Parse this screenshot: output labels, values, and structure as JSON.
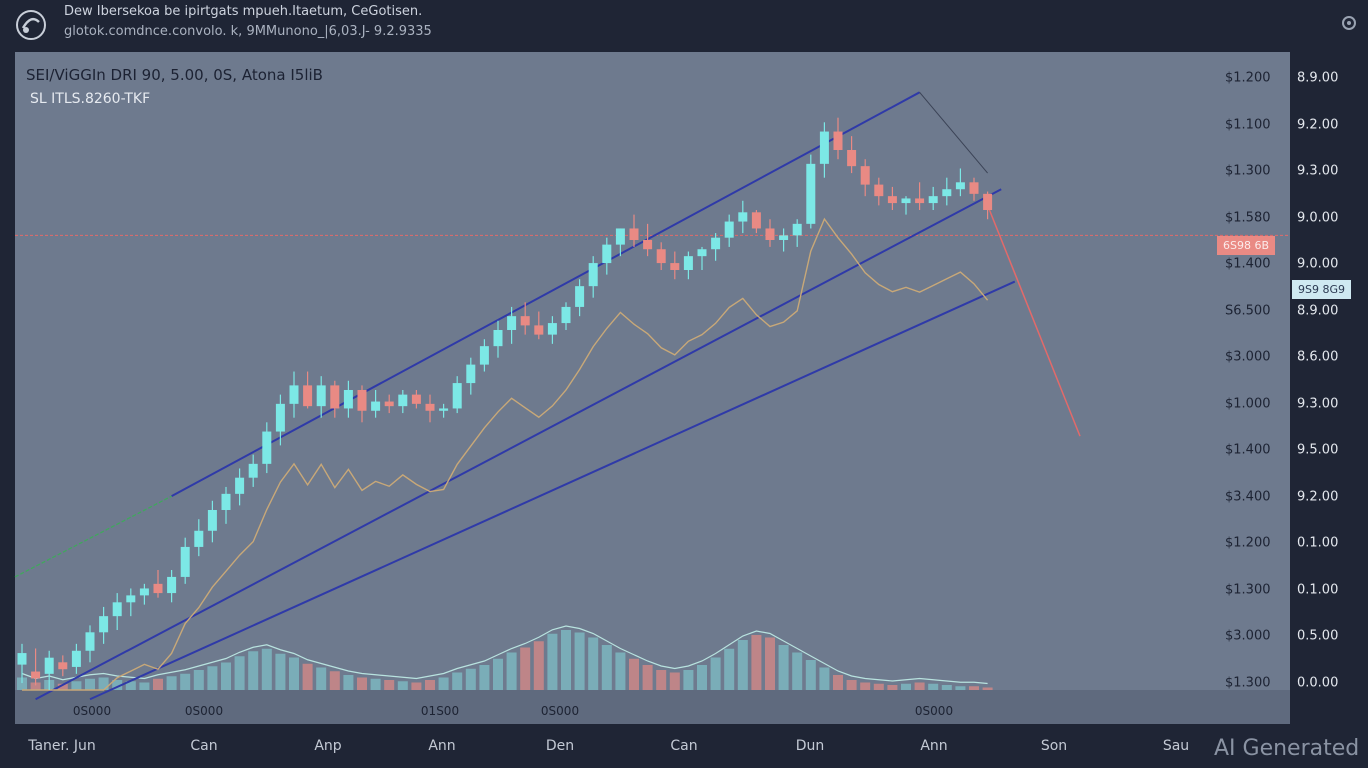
{
  "header": {
    "title": "Dew Ibersekoa be ipirtgats mpueh.Itaetum, CeGotisen.",
    "subtitle": "glotok.comdnce.convolo. k, 9MMunono_|6,03.J- 9.2.9335"
  },
  "chart_header": {
    "pair": "SEI/ViGGIn DRI 90, 5.00, 0S, Atona I5liB",
    "sublabel": "SL ITLS.8260-TKF"
  },
  "watermark": "AI Generated",
  "price_tag": "6S98 6B",
  "line_tag": "9S9 8G9",
  "colors": {
    "background": "#1f2535",
    "panel": "#6e7a8e",
    "bull": "#7ce8e6",
    "bear": "#e98a84",
    "channel": "#2f3aa8",
    "ma": "#e98a84",
    "horizontal": "#e26a6a"
  },
  "chart_data": {
    "type": "candlestick",
    "x_labels": [
      "Taner. Jun",
      "Can",
      "Anp",
      "Ann",
      "Den",
      "Can",
      "Dun",
      "Ann",
      "Son",
      "Sau"
    ],
    "volume_axis_labels": [
      "0S000",
      "0S000",
      "01S00",
      "0S000",
      "0S000"
    ],
    "y_axis_left": [
      "$1.200",
      "$1.100",
      "$1.300",
      "$1.580",
      "$1.400",
      "S6.500",
      "$3.000",
      "$1.000",
      "$1.400",
      "$3.400",
      "$1.200",
      "$1.300",
      "$3.000",
      "$1.300"
    ],
    "y_axis_right": [
      "8.9.00",
      "9.2.00",
      "9.3.00",
      "9.0.00",
      "9.0.00",
      "8.9.00",
      "8.6.00",
      "9.3.00",
      "9.5.00",
      "9.2.00",
      "0.1.00",
      "0.1.00",
      "0.5.00",
      "0.0.00"
    ],
    "price_range": [
      0.0,
      13.0
    ],
    "candles": [
      {
        "o": 0.55,
        "h": 1.0,
        "l": 0.15,
        "c": 0.8
      },
      {
        "o": 0.4,
        "h": 0.9,
        "l": 0.1,
        "c": 0.25
      },
      {
        "o": 0.35,
        "h": 0.85,
        "l": 0.0,
        "c": 0.7
      },
      {
        "o": 0.6,
        "h": 0.75,
        "l": 0.3,
        "c": 0.45
      },
      {
        "o": 0.5,
        "h": 1.0,
        "l": 0.35,
        "c": 0.85
      },
      {
        "o": 0.85,
        "h": 1.4,
        "l": 0.6,
        "c": 1.25
      },
      {
        "o": 1.25,
        "h": 1.8,
        "l": 1.0,
        "c": 1.6
      },
      {
        "o": 1.6,
        "h": 2.1,
        "l": 1.3,
        "c": 1.9
      },
      {
        "o": 1.9,
        "h": 2.2,
        "l": 1.6,
        "c": 2.05
      },
      {
        "o": 2.05,
        "h": 2.3,
        "l": 1.85,
        "c": 2.2
      },
      {
        "o": 2.3,
        "h": 2.6,
        "l": 2.0,
        "c": 2.1
      },
      {
        "o": 2.1,
        "h": 2.6,
        "l": 1.9,
        "c": 2.45
      },
      {
        "o": 2.45,
        "h": 3.3,
        "l": 2.3,
        "c": 3.1
      },
      {
        "o": 3.1,
        "h": 3.7,
        "l": 2.9,
        "c": 3.45
      },
      {
        "o": 3.45,
        "h": 4.1,
        "l": 3.2,
        "c": 3.9
      },
      {
        "o": 3.9,
        "h": 4.4,
        "l": 3.6,
        "c": 4.25
      },
      {
        "o": 4.25,
        "h": 4.8,
        "l": 4.0,
        "c": 4.6
      },
      {
        "o": 4.6,
        "h": 5.1,
        "l": 4.4,
        "c": 4.9
      },
      {
        "o": 4.9,
        "h": 5.8,
        "l": 4.7,
        "c": 5.6
      },
      {
        "o": 5.6,
        "h": 6.4,
        "l": 5.3,
        "c": 6.2
      },
      {
        "o": 6.2,
        "h": 6.9,
        "l": 5.9,
        "c": 6.6
      },
      {
        "o": 6.6,
        "h": 6.9,
        "l": 6.1,
        "c": 6.15
      },
      {
        "o": 6.15,
        "h": 6.8,
        "l": 5.9,
        "c": 6.6
      },
      {
        "o": 6.6,
        "h": 6.7,
        "l": 5.9,
        "c": 6.1
      },
      {
        "o": 6.1,
        "h": 6.7,
        "l": 5.9,
        "c": 6.5
      },
      {
        "o": 6.5,
        "h": 6.6,
        "l": 5.8,
        "c": 6.05
      },
      {
        "o": 6.05,
        "h": 6.5,
        "l": 5.9,
        "c": 6.25
      },
      {
        "o": 6.25,
        "h": 6.4,
        "l": 6.0,
        "c": 6.15
      },
      {
        "o": 6.15,
        "h": 6.5,
        "l": 6.0,
        "c": 6.4
      },
      {
        "o": 6.4,
        "h": 6.5,
        "l": 6.1,
        "c": 6.2
      },
      {
        "o": 6.2,
        "h": 6.4,
        "l": 5.8,
        "c": 6.05
      },
      {
        "o": 6.05,
        "h": 6.2,
        "l": 5.9,
        "c": 6.1
      },
      {
        "o": 6.1,
        "h": 6.8,
        "l": 6.0,
        "c": 6.65
      },
      {
        "o": 6.65,
        "h": 7.2,
        "l": 6.4,
        "c": 7.05
      },
      {
        "o": 7.05,
        "h": 7.6,
        "l": 6.9,
        "c": 7.45
      },
      {
        "o": 7.45,
        "h": 8.0,
        "l": 7.2,
        "c": 7.8
      },
      {
        "o": 7.8,
        "h": 8.3,
        "l": 7.5,
        "c": 8.1
      },
      {
        "o": 8.1,
        "h": 8.4,
        "l": 7.7,
        "c": 7.9
      },
      {
        "o": 7.9,
        "h": 8.2,
        "l": 7.6,
        "c": 7.7
      },
      {
        "o": 7.7,
        "h": 8.1,
        "l": 7.5,
        "c": 7.95
      },
      {
        "o": 7.95,
        "h": 8.4,
        "l": 7.8,
        "c": 8.3
      },
      {
        "o": 8.3,
        "h": 8.9,
        "l": 8.1,
        "c": 8.75
      },
      {
        "o": 8.75,
        "h": 9.4,
        "l": 8.5,
        "c": 9.25
      },
      {
        "o": 9.25,
        "h": 9.8,
        "l": 9.0,
        "c": 9.65
      },
      {
        "o": 9.65,
        "h": 10.0,
        "l": 9.4,
        "c": 10.0
      },
      {
        "o": 10.0,
        "h": 10.3,
        "l": 9.6,
        "c": 9.75
      },
      {
        "o": 9.75,
        "h": 10.1,
        "l": 9.4,
        "c": 9.55
      },
      {
        "o": 9.55,
        "h": 9.7,
        "l": 9.1,
        "c": 9.25
      },
      {
        "o": 9.25,
        "h": 9.5,
        "l": 8.9,
        "c": 9.1
      },
      {
        "o": 9.1,
        "h": 9.5,
        "l": 8.9,
        "c": 9.4
      },
      {
        "o": 9.4,
        "h": 9.6,
        "l": 9.1,
        "c": 9.55
      },
      {
        "o": 9.55,
        "h": 9.9,
        "l": 9.3,
        "c": 9.8
      },
      {
        "o": 9.8,
        "h": 10.3,
        "l": 9.6,
        "c": 10.15
      },
      {
        "o": 10.15,
        "h": 10.6,
        "l": 9.9,
        "c": 10.35
      },
      {
        "o": 10.35,
        "h": 10.4,
        "l": 9.9,
        "c": 10.0
      },
      {
        "o": 10.0,
        "h": 10.2,
        "l": 9.6,
        "c": 9.75
      },
      {
        "o": 9.75,
        "h": 10.0,
        "l": 9.5,
        "c": 9.85
      },
      {
        "o": 9.85,
        "h": 10.2,
        "l": 9.6,
        "c": 10.1
      },
      {
        "o": 10.1,
        "h": 11.6,
        "l": 10.0,
        "c": 11.4
      },
      {
        "o": 11.4,
        "h": 12.3,
        "l": 11.1,
        "c": 12.1
      },
      {
        "o": 12.1,
        "h": 12.4,
        "l": 11.5,
        "c": 11.7
      },
      {
        "o": 11.7,
        "h": 12.0,
        "l": 11.2,
        "c": 11.35
      },
      {
        "o": 11.35,
        "h": 11.5,
        "l": 10.7,
        "c": 10.95
      },
      {
        "o": 10.95,
        "h": 11.1,
        "l": 10.5,
        "c": 10.7
      },
      {
        "o": 10.7,
        "h": 10.9,
        "l": 10.4,
        "c": 10.55
      },
      {
        "o": 10.55,
        "h": 10.7,
        "l": 10.3,
        "c": 10.65
      },
      {
        "o": 10.65,
        "h": 11.0,
        "l": 10.4,
        "c": 10.55
      },
      {
        "o": 10.55,
        "h": 10.9,
        "l": 10.4,
        "c": 10.7
      },
      {
        "o": 10.7,
        "h": 11.1,
        "l": 10.5,
        "c": 10.85
      },
      {
        "o": 10.85,
        "h": 11.3,
        "l": 10.7,
        "c": 11.0
      },
      {
        "o": 11.0,
        "h": 11.1,
        "l": 10.6,
        "c": 10.75
      },
      {
        "o": 10.75,
        "h": 10.8,
        "l": 10.2,
        "c": 10.4
      }
    ],
    "volume": [
      1.0,
      0.6,
      0.8,
      0.5,
      0.7,
      0.9,
      1.0,
      0.8,
      0.7,
      0.6,
      0.9,
      1.1,
      1.3,
      1.6,
      1.9,
      2.2,
      2.7,
      3.1,
      3.3,
      2.9,
      2.6,
      2.1,
      1.8,
      1.5,
      1.2,
      1.0,
      0.9,
      0.8,
      0.7,
      0.6,
      0.8,
      1.0,
      1.4,
      1.7,
      2.0,
      2.5,
      3.0,
      3.4,
      3.9,
      4.5,
      4.8,
      4.6,
      4.2,
      3.6,
      3.0,
      2.5,
      2.0,
      1.6,
      1.4,
      1.6,
      2.0,
      2.6,
      3.3,
      4.0,
      4.4,
      4.2,
      3.6,
      3.0,
      2.4,
      1.8,
      1.2,
      0.8,
      0.6,
      0.5,
      0.4,
      0.5,
      0.6,
      0.5,
      0.4,
      0.3,
      0.3,
      0.2
    ],
    "horizontal_level": 9.85,
    "grid": false
  }
}
